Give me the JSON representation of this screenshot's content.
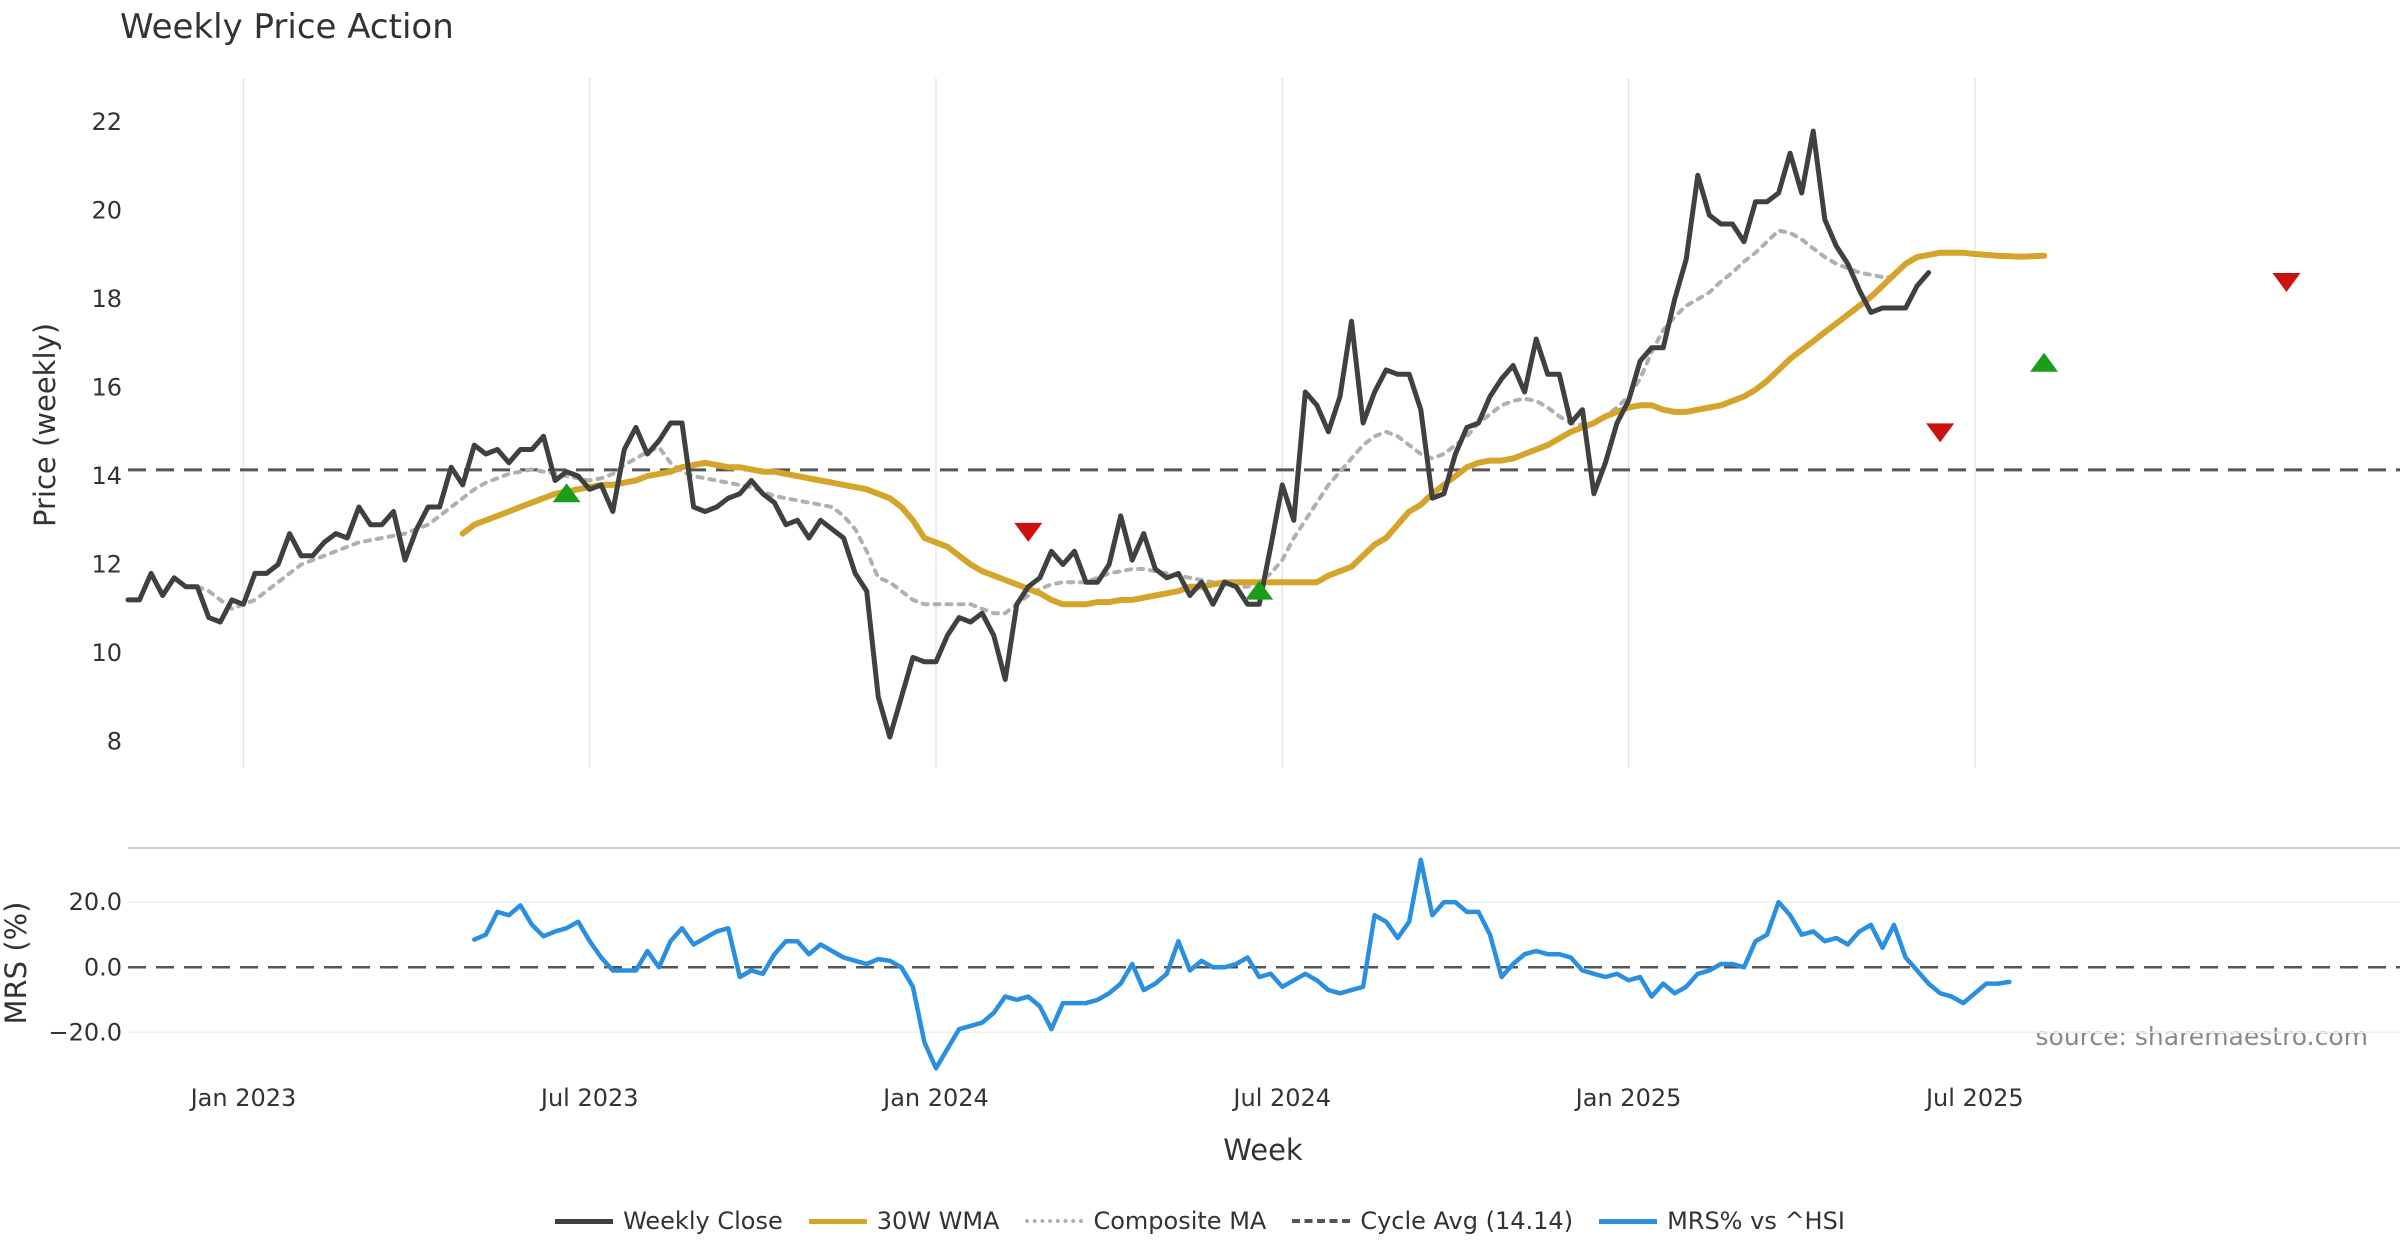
{
  "chart_data": [
    {
      "type": "line",
      "title": "Weekly Price Action",
      "ylabel": "Price (weekly)",
      "xlabel": "",
      "ylim": [
        7.4,
        23.0
      ],
      "yticks": [
        8,
        10,
        12,
        14,
        16,
        18,
        20,
        22
      ],
      "grid": "vertical",
      "reference_line": {
        "name": "Cycle Avg (14.14)",
        "value": 14.14
      },
      "series": [
        {
          "name": "Weekly Close",
          "color": "#404040",
          "style": "solid",
          "x_start": 0,
          "values": [
            11.2,
            11.2,
            11.8,
            11.3,
            11.7,
            11.5,
            11.5,
            10.8,
            10.7,
            11.2,
            11.1,
            11.8,
            11.8,
            12.0,
            12.7,
            12.2,
            12.2,
            12.5,
            12.7,
            12.6,
            13.3,
            12.9,
            12.9,
            13.2,
            12.1,
            12.8,
            13.3,
            13.3,
            14.2,
            13.8,
            14.7,
            14.5,
            14.6,
            14.3,
            14.6,
            14.6,
            14.9,
            13.9,
            14.1,
            14.0,
            13.7,
            13.8,
            13.2,
            14.6,
            15.1,
            14.5,
            14.8,
            15.2,
            15.2,
            13.3,
            13.2,
            13.3,
            13.5,
            13.6,
            13.9,
            13.6,
            13.4,
            12.9,
            13.0,
            12.6,
            13.0,
            12.8,
            12.6,
            11.8,
            11.4,
            9.0,
            8.1,
            9.0,
            9.9,
            9.8,
            9.8,
            10.4,
            10.8,
            10.7,
            10.9,
            10.4,
            9.4,
            11.1,
            11.5,
            11.7,
            12.3,
            12.0,
            12.3,
            11.6,
            11.6,
            12.0,
            13.1,
            12.1,
            12.7,
            11.9,
            11.7,
            11.8,
            11.3,
            11.6,
            11.1,
            11.6,
            11.5,
            11.1,
            11.1,
            12.4,
            13.8,
            13.0,
            15.9,
            15.6,
            15.0,
            15.8,
            17.5,
            15.2,
            15.9,
            16.4,
            16.3,
            16.3,
            15.5,
            13.5,
            13.6,
            14.5,
            15.1,
            15.2,
            15.8,
            16.2,
            16.5,
            15.9,
            17.1,
            16.3,
            16.3,
            15.2,
            15.5,
            13.6,
            14.3,
            15.2,
            15.7,
            16.6,
            16.9,
            16.9,
            18.0,
            18.9,
            20.8,
            19.9,
            19.7,
            19.7,
            19.3,
            20.2,
            20.2,
            20.4,
            21.3,
            20.4,
            21.8,
            19.8,
            19.2,
            18.8,
            18.2,
            17.7,
            17.8,
            17.8,
            17.8,
            18.3,
            18.6
          ]
        },
        {
          "name": "30W WMA",
          "color": "#d4a52a",
          "style": "solid",
          "x_start": 29,
          "values": [
            12.7,
            12.9,
            13.0,
            13.1,
            13.2,
            13.3,
            13.4,
            13.5,
            13.6,
            13.65,
            13.7,
            13.75,
            13.8,
            13.8,
            13.85,
            13.9,
            14.0,
            14.05,
            14.1,
            14.2,
            14.25,
            14.3,
            14.25,
            14.2,
            14.2,
            14.15,
            14.1,
            14.1,
            14.05,
            14.0,
            13.95,
            13.9,
            13.85,
            13.8,
            13.75,
            13.7,
            13.6,
            13.5,
            13.3,
            13.0,
            12.6,
            12.5,
            12.4,
            12.2,
            12.0,
            11.85,
            11.75,
            11.65,
            11.55,
            11.45,
            11.35,
            11.2,
            11.1,
            11.1,
            11.1,
            11.15,
            11.15,
            11.2,
            11.2,
            11.25,
            11.3,
            11.35,
            11.4,
            11.5,
            11.5,
            11.55,
            11.6,
            11.6,
            11.6,
            11.6,
            11.6,
            11.6,
            11.6,
            11.6,
            11.6,
            11.75,
            11.85,
            11.95,
            12.2,
            12.45,
            12.6,
            12.9,
            13.2,
            13.35,
            13.6,
            13.8,
            14.0,
            14.2,
            14.3,
            14.35,
            14.35,
            14.4,
            14.5,
            14.6,
            14.7,
            14.85,
            15.0,
            15.1,
            15.2,
            15.35,
            15.45,
            15.55,
            15.6,
            15.6,
            15.5,
            15.45,
            15.45,
            15.5,
            15.55,
            15.6,
            15.7,
            15.8,
            15.95,
            16.15,
            16.4,
            16.65,
            16.85,
            17.05,
            17.25,
            17.45,
            17.65,
            17.85,
            18.05,
            18.3,
            18.55,
            18.8,
            18.95,
            19.0,
            19.05,
            19.05,
            19.05,
            19.02,
            19.0,
            18.98,
            18.97,
            18.96,
            18.97,
            18.98
          ]
        },
        {
          "name": "Composite MA",
          "color": "#b0b0b0",
          "style": "dotted",
          "x_start": 5,
          "values": [
            11.5,
            11.5,
            11.4,
            11.2,
            11.0,
            11.1,
            11.2,
            11.4,
            11.6,
            11.8,
            12.0,
            12.1,
            12.2,
            12.3,
            12.4,
            12.5,
            12.55,
            12.6,
            12.65,
            12.7,
            12.8,
            12.9,
            13.1,
            13.3,
            13.5,
            13.7,
            13.85,
            13.95,
            14.05,
            14.1,
            14.15,
            14.1,
            14.05,
            14.0,
            13.95,
            13.9,
            13.95,
            14.05,
            14.25,
            14.4,
            14.55,
            14.65,
            14.3,
            14.1,
            14.0,
            13.95,
            13.9,
            13.85,
            13.8,
            13.75,
            13.65,
            13.55,
            13.5,
            13.45,
            13.4,
            13.35,
            13.3,
            13.1,
            12.8,
            12.3,
            11.7,
            11.6,
            11.4,
            11.2,
            11.1,
            11.1,
            11.1,
            11.1,
            11.1,
            11.0,
            10.9,
            10.9,
            11.1,
            11.3,
            11.45,
            11.55,
            11.6,
            11.6,
            11.6,
            11.7,
            11.8,
            11.85,
            11.9,
            11.9,
            11.85,
            11.8,
            11.75,
            11.7,
            11.65,
            11.6,
            11.55,
            11.5,
            11.5,
            11.6,
            11.8,
            12.1,
            12.6,
            13.0,
            13.4,
            13.8,
            14.1,
            14.4,
            14.7,
            14.9,
            15.0,
            14.9,
            14.7,
            14.5,
            14.4,
            14.5,
            14.7,
            14.9,
            15.2,
            15.4,
            15.6,
            15.7,
            15.75,
            15.7,
            15.55,
            15.35,
            15.2,
            15.15,
            15.2,
            15.35,
            15.55,
            15.8,
            16.2,
            16.8,
            17.3,
            17.6,
            17.85,
            18.0,
            18.15,
            18.4,
            18.6,
            18.85,
            19.05,
            19.3,
            19.55,
            19.5,
            19.35,
            19.15,
            18.95,
            18.8,
            18.7,
            18.6,
            18.55,
            18.5,
            18.5
          ]
        }
      ],
      "signals": [
        {
          "type": "buy",
          "x": 38,
          "y": 13.6,
          "color": "#1a9e1a"
        },
        {
          "type": "sell",
          "x": 78,
          "y": 12.75,
          "color": "#cc1111"
        },
        {
          "type": "buy",
          "x": 98,
          "y": 11.4,
          "color": "#1a9e1a"
        },
        {
          "type": "sell",
          "x": 157,
          "y": 15.0,
          "color": "#cc1111"
        },
        {
          "type": "buy",
          "x": 166,
          "y": 16.55,
          "color": "#1a9e1a"
        },
        {
          "type": "sell",
          "x": 187,
          "y": 18.4,
          "color": "#cc1111"
        }
      ]
    },
    {
      "type": "line",
      "title": "",
      "ylabel": "MRS (%)",
      "xlabel": "Week",
      "ylim": [
        -30,
        36
      ],
      "yticks": [
        -20,
        0,
        20
      ],
      "ytick_labels": [
        "−20.0",
        "0.0",
        "20.0"
      ],
      "xticks": [
        "Jan 2023",
        "Jul 2023",
        "Jan 2024",
        "Jul 2024",
        "Jan 2025",
        "Jul 2025"
      ],
      "reference_line": {
        "value": 0
      },
      "series": [
        {
          "name": "MRS% vs ^HSI",
          "color": "#2b8fe0",
          "style": "solid",
          "x_start": 30,
          "values": [
            8.5,
            10,
            17,
            16,
            19,
            13,
            9.5,
            11,
            12,
            14,
            8,
            3,
            -1,
            -1,
            -1,
            5,
            0,
            8,
            12,
            7,
            9,
            11,
            12,
            -3,
            -1,
            -2,
            4,
            8,
            8,
            4,
            7,
            5,
            3,
            2,
            1,
            2.5,
            2,
            0,
            -6,
            -23,
            -31,
            -25,
            -19,
            -18,
            -17,
            -14,
            -9,
            -10,
            -9,
            -12,
            -19,
            -11,
            -11,
            -11,
            -10,
            -8,
            -5,
            1,
            -7,
            -5,
            -2,
            8,
            -1,
            2,
            0,
            0,
            1,
            3,
            -3,
            -2,
            -6,
            -4,
            -2,
            -4,
            -7,
            -8,
            -7,
            -6,
            16,
            14,
            9,
            14,
            33,
            16,
            20,
            20,
            17,
            17,
            10,
            -3,
            1,
            4,
            5,
            4,
            4,
            3,
            -1,
            -2,
            -3,
            -2,
            -4,
            -3,
            -9,
            -5,
            -8,
            -6,
            -2,
            -1,
            1,
            1,
            0,
            8,
            10,
            20,
            16,
            10,
            11,
            8,
            9,
            7,
            11,
            13,
            6,
            13,
            3,
            -1,
            -5,
            -8,
            -9,
            -11,
            -8,
            -5,
            -5,
            -4.5
          ]
        }
      ]
    }
  ],
  "x_axis": {
    "tick_labels": [
      "Jan 2023",
      "Jul 2023",
      "Jan 2024",
      "Jul 2024",
      "Jan 2025",
      "Jul 2025"
    ],
    "tick_weeks": [
      10,
      40,
      70,
      100,
      130,
      160
    ],
    "label": "Week"
  },
  "annotation": "source: sharemaestro.com",
  "legend": {
    "placement": "bottom-center",
    "items": [
      {
        "label": "Weekly Close",
        "color": "#404040",
        "style": "solid"
      },
      {
        "label": "30W WMA",
        "color": "#d4a52a",
        "style": "solid"
      },
      {
        "label": "Composite MA",
        "color": "#b0b0b0",
        "style": "dotted"
      },
      {
        "label": "Cycle Avg (14.14)",
        "color": "#555555",
        "style": "dashed"
      },
      {
        "label": "MRS% vs ^HSI",
        "color": "#2b8fe0",
        "style": "solid"
      }
    ]
  }
}
